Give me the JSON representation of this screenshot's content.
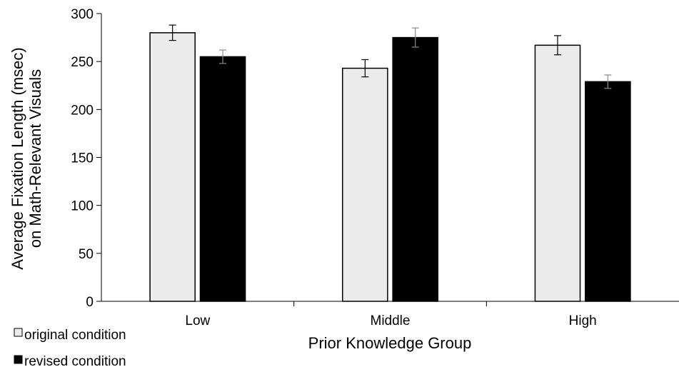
{
  "chart_data": {
    "type": "bar",
    "title": "",
    "xlabel": "Prior Knowledge Group",
    "ylabel": [
      "Average Fixation Length (msec)",
      "on Math-Relevant Visuals"
    ],
    "categories": [
      "Low",
      "Middle",
      "High"
    ],
    "ylim": [
      0,
      300
    ],
    "yticks": [
      0,
      50,
      100,
      150,
      200,
      250,
      300
    ],
    "grid": false,
    "legend_position": "bottom-left",
    "series": [
      {
        "name": "original condition",
        "color": "#ebebeb",
        "values": [
          280,
          243,
          267
        ],
        "errors": [
          8,
          9,
          10
        ]
      },
      {
        "name": "revised condition",
        "color": "#000000",
        "values": [
          255,
          275,
          229
        ],
        "errors": [
          7,
          10,
          7
        ]
      }
    ]
  }
}
